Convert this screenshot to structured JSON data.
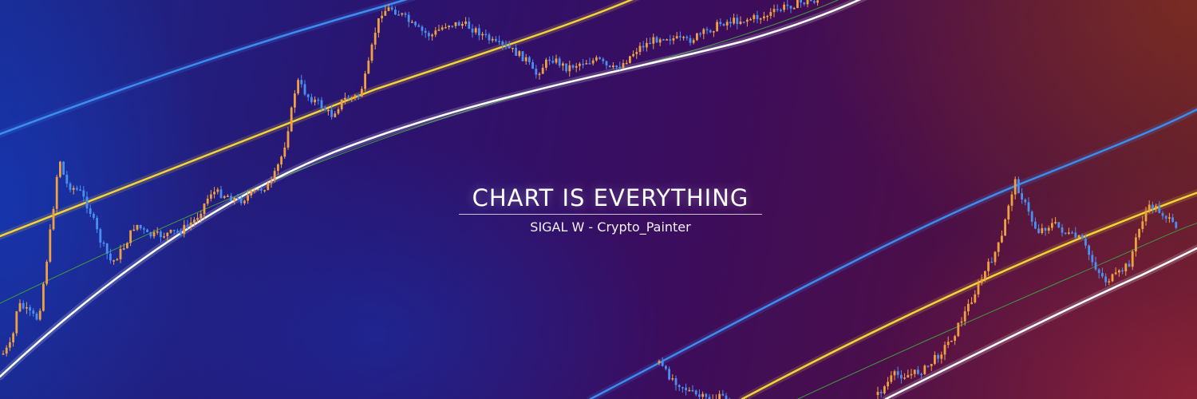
{
  "banner": {
    "title": "CHART IS EVERYTHING",
    "subtitle": "SIGAL W - Crypto_Painter"
  },
  "colors": {
    "upper_band": "#3d8df0",
    "middle_band": "#f2d43a",
    "lower_band": "#ffffff",
    "fair_line": "#3f9a3f",
    "candle_up": "#f0a040",
    "candle_down": "#4a8ff0"
  }
}
